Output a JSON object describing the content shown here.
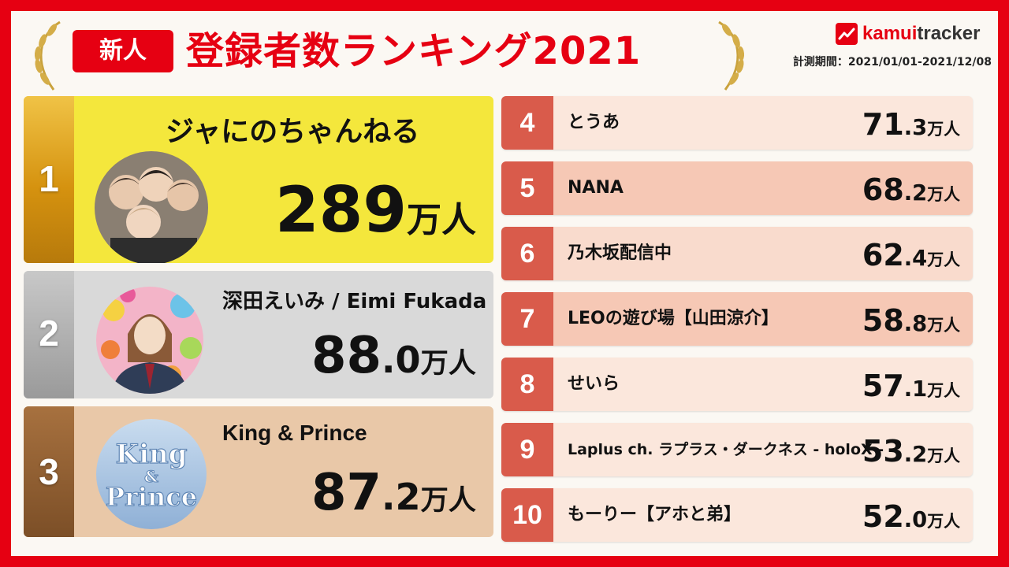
{
  "header": {
    "badge": "新人",
    "title": "登録者数ランキング2021",
    "period": "計測期間：2021/01/01-2021/12/08",
    "logo_prefix": "kamui",
    "logo_suffix": "tracker"
  },
  "top3": [
    {
      "rank": "1",
      "name": "ジャにのちゃんねる",
      "value": "289",
      "decimal": "",
      "unit": "万人"
    },
    {
      "rank": "2",
      "name": "深田えいみ / Eimi Fukada",
      "value": "88",
      "decimal": ".0",
      "unit": "万人"
    },
    {
      "rank": "3",
      "name": "King & Prince",
      "value": "87",
      "decimal": ".2",
      "unit": "万人",
      "avatar_line1": "King",
      "avatar_amp": "&",
      "avatar_line2": "Prince"
    }
  ],
  "rest": [
    {
      "rank": "4",
      "name": "とうあ",
      "value": "71",
      "decimal": ".3",
      "unit": "万人"
    },
    {
      "rank": "5",
      "name": "NANA",
      "value": "68",
      "decimal": ".2",
      "unit": "万人"
    },
    {
      "rank": "6",
      "name": "乃木坂配信中",
      "value": "62",
      "decimal": ".4",
      "unit": "万人"
    },
    {
      "rank": "7",
      "name": "LEOの遊び場【山田涼介】",
      "value": "58",
      "decimal": ".8",
      "unit": "万人"
    },
    {
      "rank": "8",
      "name": "せいら",
      "value": "57",
      "decimal": ".1",
      "unit": "万人"
    },
    {
      "rank": "9",
      "name": "Laplus ch. ラプラス・ダークネス - holoX -",
      "value": "53",
      "decimal": ".2",
      "unit": "万人"
    },
    {
      "rank": "10",
      "name": "もーりー【アホと弟】",
      "value": "52",
      "decimal": ".0",
      "unit": "万人"
    }
  ],
  "row_bg": [
    "#fbe7dc",
    "#f6c8b5",
    "#f9dbcd",
    "#f6c8b5",
    "#fbe7dc",
    "#fbe7dc",
    "#fbe7dc"
  ]
}
